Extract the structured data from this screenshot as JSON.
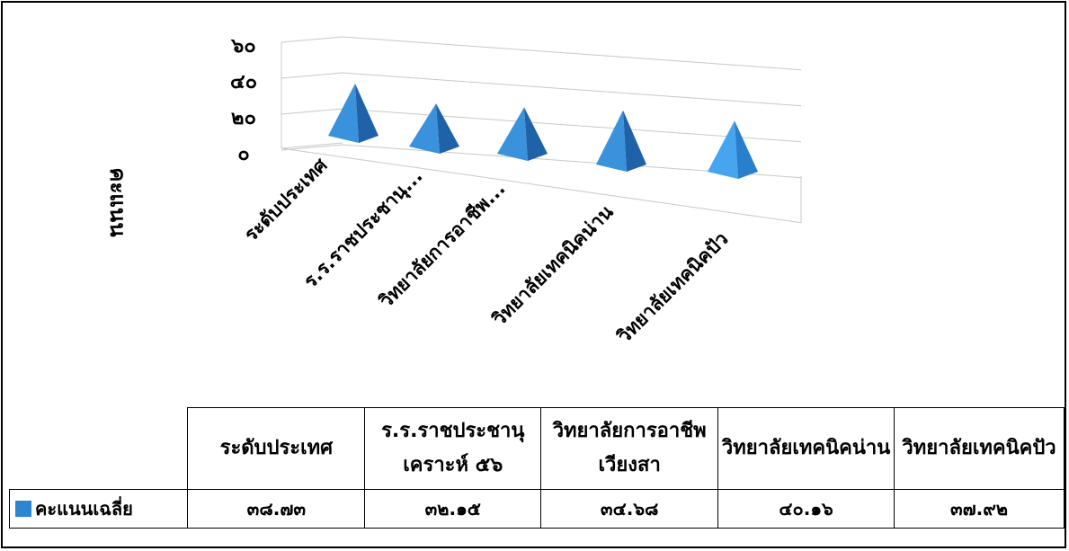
{
  "chart_data": {
    "type": "bar",
    "bar_shape": "3d-pyramid",
    "categories_axis": [
      "ระดับประเทศ",
      "ร.ร.ราชประชานุ...",
      "วิทยาลัยการอาชีพ...",
      "วิทยาลัยเทคนิคน่าน",
      "วิทยาลัยเทคนิคปัว"
    ],
    "categories_table": [
      "ระดับประเทศ",
      "ร.ร.ราชประชานุเคราะห์ ๕๖",
      "วิทยาลัยการอาชีพเวียงสา",
      "วิทยาลัยเทคนิคน่าน",
      "วิทยาลัยเทคนิคปัว"
    ],
    "series": [
      {
        "name": "คะแนนเฉลี่ย",
        "values": [
          38.73,
          32.15,
          34.68,
          40.16,
          37.92
        ],
        "color": "#2f86d0"
      }
    ],
    "value_labels": [
      "๓๘.๗๓",
      "๓๒.๑๕",
      "๓๔.๖๘",
      "๔๐.๑๖",
      "๓๗.๙๒"
    ],
    "ylabel": "คะแนน",
    "yticks": [
      {
        "value": 0,
        "label": "๐"
      },
      {
        "value": 20,
        "label": "๒๐"
      },
      {
        "value": 40,
        "label": "๔๐"
      },
      {
        "value": 60,
        "label": "๖๐"
      }
    ],
    "ylim": [
      0,
      60
    ],
    "grid": true,
    "legend": "data-table"
  }
}
